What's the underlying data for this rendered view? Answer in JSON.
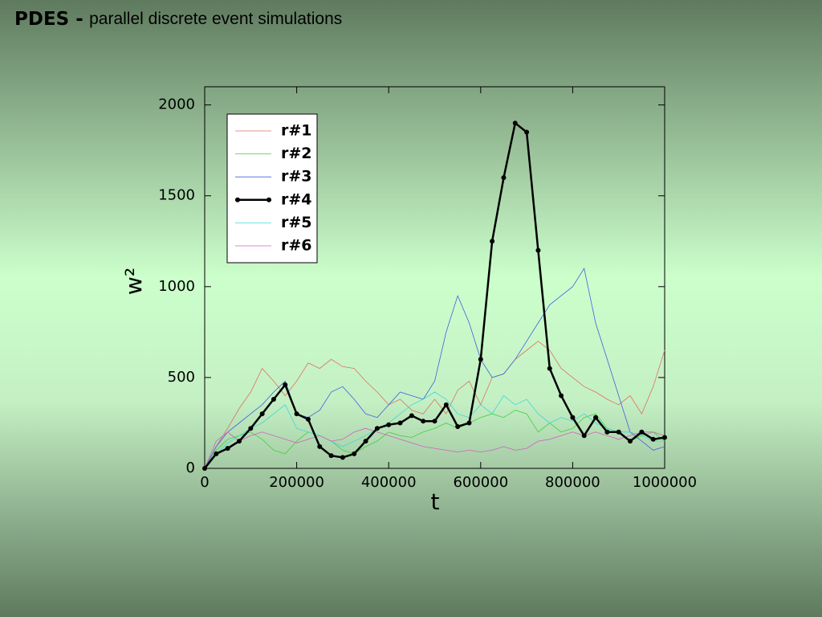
{
  "slide": {
    "title_bold": "PDES -",
    "title": "parallel discrete event simulations"
  },
  "chart_data": {
    "type": "line",
    "xlabel": "t",
    "ylabel": "w²",
    "x": [
      0,
      25000,
      50000,
      75000,
      100000,
      125000,
      150000,
      175000,
      200000,
      225000,
      250000,
      275000,
      300000,
      325000,
      350000,
      375000,
      400000,
      425000,
      450000,
      475000,
      500000,
      525000,
      550000,
      575000,
      600000,
      625000,
      650000,
      675000,
      700000,
      725000,
      750000,
      775000,
      800000,
      825000,
      850000,
      875000,
      900000,
      925000,
      950000,
      975000,
      1000000
    ],
    "xlim": [
      0,
      1000000
    ],
    "xticks": [
      0,
      200000,
      400000,
      600000,
      800000,
      1000000
    ],
    "ylim": [
      0,
      2100
    ],
    "yticks": [
      0,
      500,
      1000,
      1500,
      2000
    ],
    "legend": "upper-left",
    "series": [
      {
        "name": "r#1",
        "color": "#e07060",
        "values": [
          0,
          120,
          220,
          330,
          420,
          550,
          480,
          400,
          480,
          580,
          550,
          600,
          560,
          550,
          480,
          420,
          350,
          380,
          320,
          300,
          380,
          300,
          430,
          480,
          350,
          500,
          520,
          600,
          650,
          700,
          650,
          550,
          500,
          450,
          420,
          380,
          350,
          400,
          300,
          450,
          650
        ]
      },
      {
        "name": "r#2",
        "color": "#40d040",
        "values": [
          0,
          100,
          160,
          180,
          200,
          160,
          100,
          80,
          150,
          200,
          180,
          150,
          100,
          80,
          120,
          150,
          200,
          180,
          170,
          200,
          220,
          250,
          220,
          250,
          280,
          300,
          280,
          320,
          300,
          200,
          250,
          200,
          220,
          280,
          300,
          220,
          200,
          150,
          180,
          200,
          150
        ]
      },
      {
        "name": "r#3",
        "color": "#4060e0",
        "values": [
          0,
          120,
          200,
          250,
          300,
          350,
          420,
          480,
          300,
          280,
          320,
          420,
          450,
          380,
          300,
          280,
          350,
          420,
          400,
          380,
          480,
          750,
          950,
          800,
          600,
          500,
          520,
          600,
          700,
          800,
          900,
          950,
          1000,
          1100,
          800,
          600,
          400,
          200,
          150,
          100,
          120
        ]
      },
      {
        "name": "r#4",
        "color": "#000000",
        "markers": true,
        "values": [
          0,
          80,
          110,
          150,
          220,
          300,
          380,
          460,
          300,
          270,
          120,
          70,
          60,
          80,
          150,
          220,
          240,
          250,
          290,
          260,
          260,
          350,
          230,
          250,
          600,
          1250,
          1600,
          1900,
          1850,
          1200,
          550,
          400,
          280,
          180,
          280,
          200,
          200,
          150,
          200,
          160,
          170
        ]
      },
      {
        "name": "r#5",
        "color": "#40d8d8",
        "values": [
          0,
          80,
          140,
          180,
          220,
          250,
          300,
          350,
          220,
          200,
          180,
          150,
          120,
          150,
          180,
          220,
          250,
          300,
          350,
          380,
          420,
          380,
          300,
          280,
          350,
          300,
          400,
          350,
          380,
          300,
          250,
          280,
          260,
          300,
          250,
          220,
          200,
          200,
          180,
          150,
          150
        ]
      },
      {
        "name": "r#6",
        "color": "#d060c0",
        "values": [
          0,
          150,
          200,
          150,
          180,
          200,
          180,
          160,
          140,
          160,
          180,
          150,
          160,
          200,
          220,
          200,
          180,
          160,
          140,
          120,
          110,
          100,
          90,
          100,
          90,
          100,
          120,
          100,
          110,
          150,
          160,
          180,
          200,
          180,
          200,
          180,
          160,
          180,
          200,
          200,
          180
        ]
      }
    ]
  }
}
